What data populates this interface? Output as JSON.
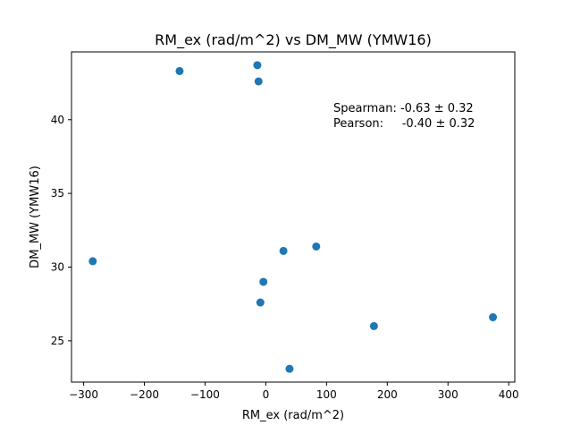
{
  "chart_data": {
    "type": "scatter",
    "title": "RM_ex (rad/m^2) vs DM_MW (YMW16)",
    "xlabel": "RM_ex (rad/m^2)",
    "ylabel": "DM_MW (YMW16)",
    "xlim": [
      -320,
      410
    ],
    "ylim": [
      22.2,
      44.6
    ],
    "xticks": [
      -300,
      -200,
      -100,
      0,
      100,
      200,
      300,
      400
    ],
    "yticks": [
      25,
      30,
      35,
      40
    ],
    "grid": false,
    "marker_color": "#1f77b4",
    "points": [
      {
        "x": -142,
        "y": 43.3
      },
      {
        "x": -14,
        "y": 43.7
      },
      {
        "x": -12,
        "y": 42.6
      },
      {
        "x": -285,
        "y": 30.4
      },
      {
        "x": 29,
        "y": 31.1
      },
      {
        "x": 83,
        "y": 31.4
      },
      {
        "x": -4,
        "y": 29.0
      },
      {
        "x": -9,
        "y": 27.6
      },
      {
        "x": 178,
        "y": 26.0
      },
      {
        "x": 374,
        "y": 26.6
      },
      {
        "x": 39,
        "y": 23.1
      }
    ],
    "annotation": {
      "spearman": "Spearman: -0.63 ± 0.32",
      "pearson": "Pearson:     -0.40 ± 0.32"
    }
  }
}
